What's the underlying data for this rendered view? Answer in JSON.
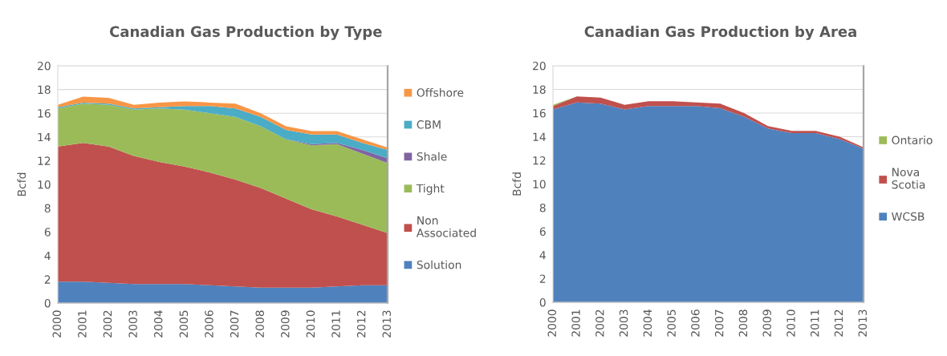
{
  "chart_data": [
    {
      "type": "area",
      "title": "Canadian Gas Production by Type",
      "ylabel": "Bcfd",
      "stacked": true,
      "legend": "right",
      "grid": "y",
      "categories": [
        "2000",
        "2001",
        "2002",
        "2003",
        "2004",
        "2005",
        "2006",
        "2007",
        "2008",
        "2009",
        "2010",
        "2011",
        "2012",
        "2013"
      ],
      "ylim": [
        0,
        20
      ],
      "yticks": [
        0,
        2,
        4,
        6,
        8,
        10,
        12,
        14,
        16,
        18,
        20
      ],
      "series": [
        {
          "name": "Solution",
          "color": "#4f81bd",
          "values": [
            1.8,
            1.8,
            1.7,
            1.6,
            1.6,
            1.6,
            1.5,
            1.4,
            1.3,
            1.3,
            1.3,
            1.4,
            1.5,
            1.5
          ]
        },
        {
          "name": "Non Associated",
          "color": "#c0504d",
          "values": [
            11.4,
            11.7,
            11.5,
            10.8,
            10.3,
            9.9,
            9.5,
            9.0,
            8.4,
            7.5,
            6.6,
            5.9,
            5.1,
            4.4
          ]
        },
        {
          "name": "Tight",
          "color": "#9bbb59",
          "values": [
            3.2,
            3.3,
            3.5,
            3.9,
            4.5,
            4.8,
            5.0,
            5.3,
            5.2,
            5.0,
            5.4,
            6.1,
            6.0,
            5.9
          ]
        },
        {
          "name": "Shale",
          "color": "#8064a2",
          "values": [
            0,
            0,
            0,
            0,
            0,
            0,
            0,
            0,
            0,
            0,
            0.1,
            0.1,
            0.3,
            0.4
          ]
        },
        {
          "name": "CBM",
          "color": "#4bacc6",
          "values": [
            0.1,
            0.1,
            0.1,
            0.1,
            0.1,
            0.3,
            0.6,
            0.7,
            0.8,
            0.8,
            0.8,
            0.7,
            0.6,
            0.7
          ]
        },
        {
          "name": "Offshore",
          "color": "#f79646",
          "values": [
            0.2,
            0.5,
            0.5,
            0.3,
            0.4,
            0.4,
            0.3,
            0.4,
            0.3,
            0.3,
            0.3,
            0.3,
            0.3,
            0.2
          ]
        }
      ]
    },
    {
      "type": "area",
      "title": "Canadian Gas Production by Area",
      "ylabel": "Bcfd",
      "stacked": true,
      "legend": "right",
      "grid": "y",
      "categories": [
        "2000",
        "2001",
        "2002",
        "2003",
        "2004",
        "2005",
        "2006",
        "2007",
        "2008",
        "2009",
        "2010",
        "2011",
        "2012",
        "2013"
      ],
      "ylim": [
        0,
        20
      ],
      "yticks": [
        0,
        2,
        4,
        6,
        8,
        10,
        12,
        14,
        16,
        18,
        20
      ],
      "series": [
        {
          "name": "WCSB",
          "color": "#4f81bd",
          "values": [
            16.3,
            16.9,
            16.8,
            16.3,
            16.6,
            16.6,
            16.6,
            16.4,
            15.7,
            14.7,
            14.3,
            14.3,
            13.8,
            13.0
          ]
        },
        {
          "name": "Nova Scotia",
          "color": "#c0504d",
          "values": [
            0.3,
            0.5,
            0.5,
            0.4,
            0.4,
            0.4,
            0.3,
            0.4,
            0.3,
            0.2,
            0.2,
            0.2,
            0.2,
            0.1
          ]
        },
        {
          "name": "Ontario",
          "color": "#9bbb59",
          "values": [
            0.1,
            0,
            0,
            0,
            0,
            0,
            0,
            0,
            0,
            0,
            0,
            0,
            0,
            0
          ]
        }
      ]
    }
  ]
}
